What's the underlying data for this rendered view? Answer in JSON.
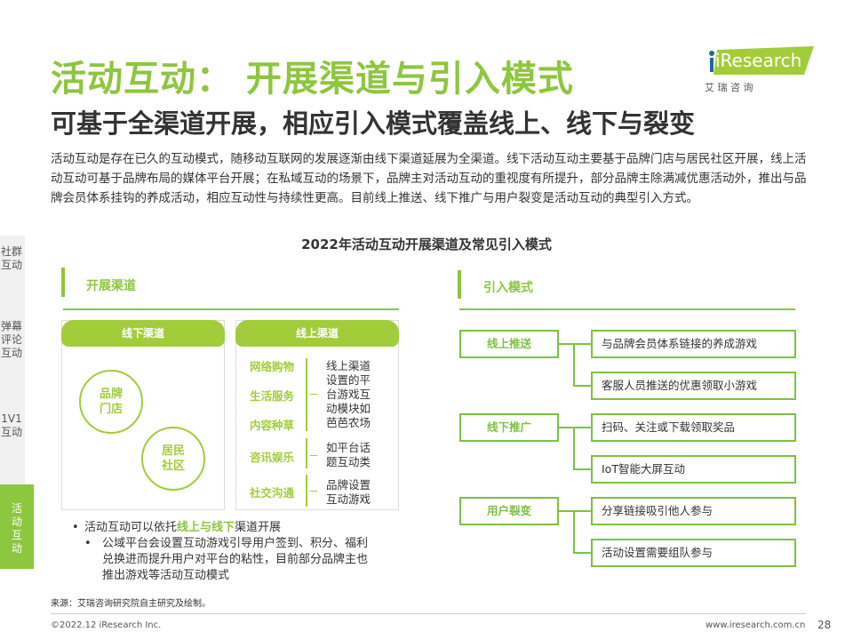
{
  "title": "活动互动： 开展渠道与引入模式",
  "subtitle": "可基于全渠道开展，相应引入模式覆盖线上、线下与裂变",
  "paragraph": "活动互动是存在已久的互动模式，随移动互联网的发展逐渐由线下渠道延展为全渠道。线下活动互动主要基于品牌门店与居民社区开展，线上活动互动可基于品牌布局的媒体平台开展；在私域互动的场景下，品牌主对活动互动的重视度有所提升，部分品牌主除满减优惠活动外，推出与品牌会员体系挂钩的养成活动，相应互动性与持续性更高。目前线上推送、线下推广与用户裂变是活动互动的典型引入方式。",
  "logo": {
    "brand": "iResearch",
    "cn": "艾 瑞 咨 询"
  },
  "accent": "#8dc63f",
  "sidebar": [
    {
      "label": "社群互动",
      "active": false
    },
    {
      "label": "弹幕评论互动",
      "active": false
    },
    {
      "label": "1V1互动",
      "active": false
    },
    {
      "label": "活动互动",
      "active": true
    }
  ],
  "chart_title": "2022年活动互动开展渠道及常见引入模式",
  "channels": {
    "heading": "开展渠道",
    "offline": {
      "label": "线下渠道",
      "items": [
        "品牌门店",
        "居民社区"
      ]
    },
    "online": {
      "label": "线上渠道",
      "groups": [
        {
          "items": [
            "网络购物",
            "生活服务",
            "内容种草"
          ],
          "desc": "线上渠道设置的平台游戏互动模块如芭芭农场"
        },
        {
          "items": [
            "咨讯娱乐"
          ],
          "desc": "如平台话题互动类"
        },
        {
          "items": [
            "社交沟通"
          ],
          "desc": "品牌设置互动游戏"
        }
      ]
    },
    "bullets": [
      {
        "pre": "活动互动可以依托",
        "hl": "线上与线下",
        "post": "渠道开展"
      },
      {
        "pre": "公域平台会设置互动游戏引导用户签到、积分、福利兑换进而提升用户对平台的粘性，目前部分品牌主也推出游戏等活动互动模式",
        "hl": "",
        "post": ""
      }
    ]
  },
  "modes": {
    "heading": "引入模式",
    "groups": [
      {
        "label": "线上推送",
        "items": [
          "与品牌会员体系链接的养成游戏",
          "客服人员推送的优惠领取小游戏"
        ]
      },
      {
        "label": "线下推广",
        "items": [
          "扫码、关注或下载领取奖品",
          "IoT智能大屏互动"
        ]
      },
      {
        "label": "用户裂变",
        "items": [
          "分享链接吸引他人参与",
          "活动设置需要组队参与"
        ]
      }
    ]
  },
  "source": "来源：艾瑞咨询研究院自主研究及绘制。",
  "footer": {
    "copyright": "©2022.12 iResearch Inc.",
    "url": "www.iresearch.com.cn",
    "page": "28"
  }
}
